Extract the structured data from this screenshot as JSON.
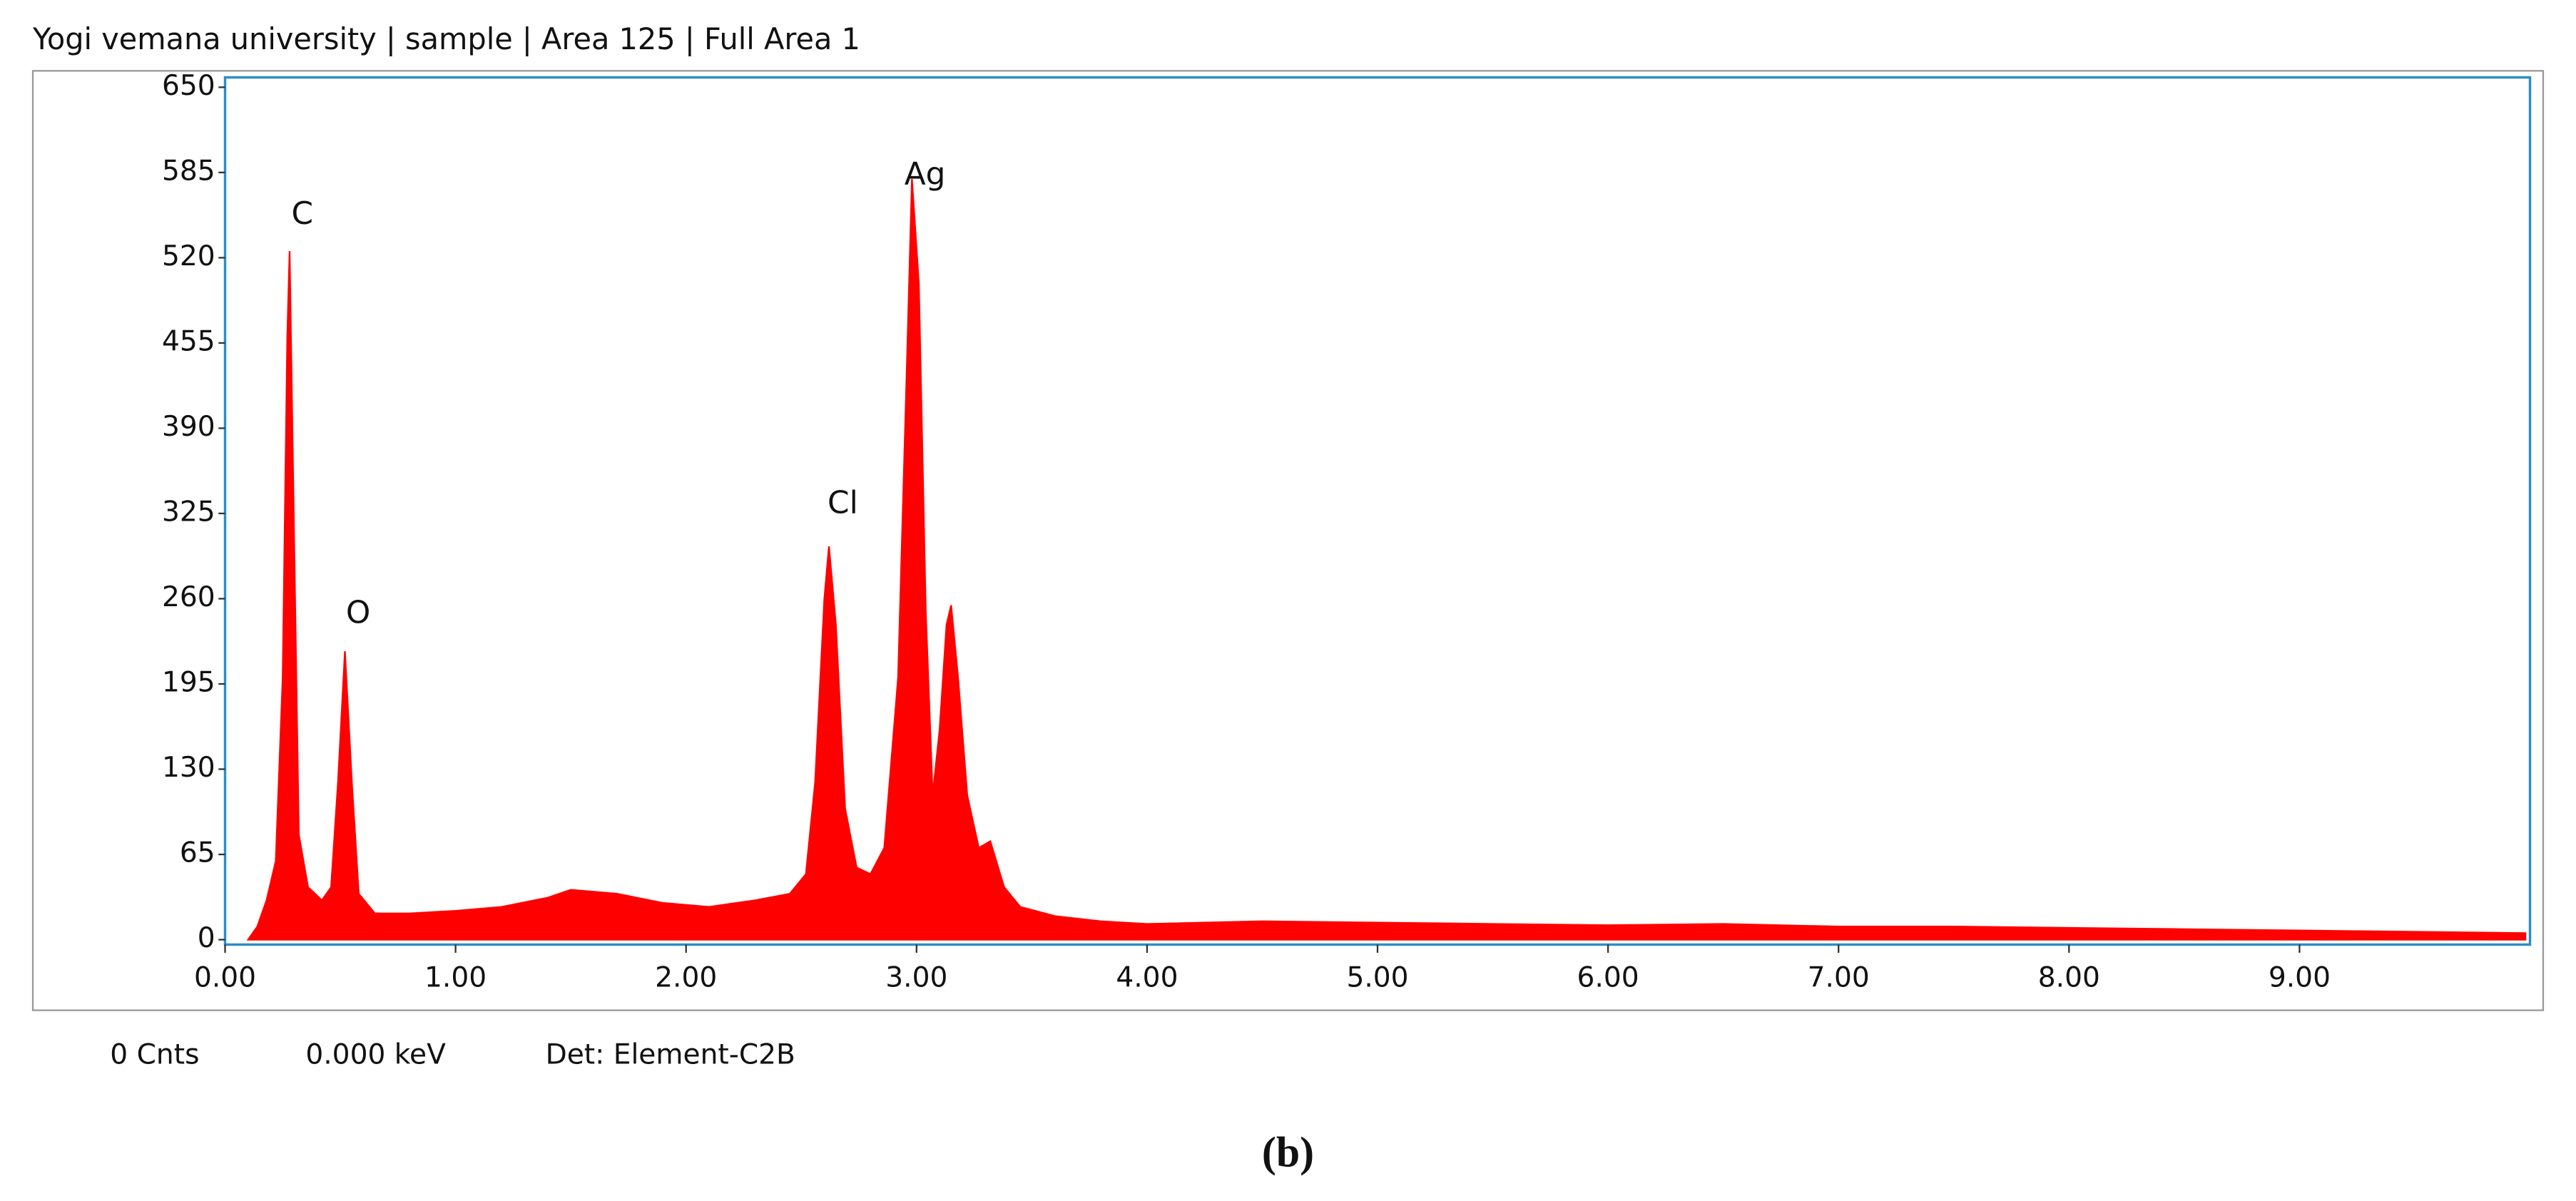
{
  "header": {
    "title": "Yogi vemana university | sample | Area 125 | Full Area 1"
  },
  "chart_data": {
    "type": "area",
    "x": [
      0.1,
      0.14,
      0.18,
      0.22,
      0.25,
      0.27,
      0.28,
      0.3,
      0.32,
      0.36,
      0.42,
      0.46,
      0.49,
      0.52,
      0.55,
      0.58,
      0.65,
      0.8,
      1.0,
      1.2,
      1.4,
      1.5,
      1.7,
      1.9,
      2.1,
      2.3,
      2.45,
      2.52,
      2.56,
      2.6,
      2.62,
      2.65,
      2.69,
      2.74,
      2.8,
      2.86,
      2.92,
      2.96,
      2.98,
      3.01,
      3.04,
      3.07,
      3.1,
      3.13,
      3.15,
      3.18,
      3.22,
      3.27,
      3.32,
      3.38,
      3.45,
      3.6,
      3.8,
      4.0,
      4.5,
      5.0,
      5.5,
      6.0,
      6.5,
      7.0,
      7.5,
      8.0,
      8.5,
      9.0,
      9.5,
      9.98
    ],
    "values": [
      0,
      10,
      30,
      60,
      200,
      460,
      525,
      300,
      80,
      40,
      30,
      40,
      120,
      220,
      120,
      35,
      20,
      20,
      22,
      25,
      32,
      38,
      35,
      28,
      25,
      30,
      35,
      50,
      120,
      260,
      300,
      240,
      100,
      55,
      50,
      70,
      200,
      450,
      580,
      500,
      250,
      110,
      160,
      240,
      255,
      200,
      110,
      70,
      75,
      40,
      25,
      18,
      14,
      12,
      14,
      13,
      12,
      11,
      12,
      10,
      10,
      9,
      8,
      7,
      6,
      5
    ],
    "color": "#ff0000",
    "annotations": [
      "C",
      "O",
      "Cl",
      "Ag"
    ],
    "xlim": [
      0,
      10
    ],
    "xticks": [
      {
        "value": 0,
        "label": "0.00"
      },
      {
        "value": 1,
        "label": "1.00"
      },
      {
        "value": 2,
        "label": "2.00"
      },
      {
        "value": 3,
        "label": "3.00"
      },
      {
        "value": 4,
        "label": "4.00"
      },
      {
        "value": 5,
        "label": "5.00"
      },
      {
        "value": 6,
        "label": "6.00"
      },
      {
        "value": 7,
        "label": "7.00"
      },
      {
        "value": 8,
        "label": "8.00"
      },
      {
        "value": 9,
        "label": "9.00"
      }
    ],
    "ylim": [
      0,
      650
    ],
    "yticks": [
      0,
      65,
      130,
      195,
      260,
      325,
      390,
      455,
      520,
      585,
      650
    ]
  },
  "status": [
    "0 Cnts",
    "0.000 keV",
    "Det: Element-C2B"
  ],
  "caption": "(b)"
}
